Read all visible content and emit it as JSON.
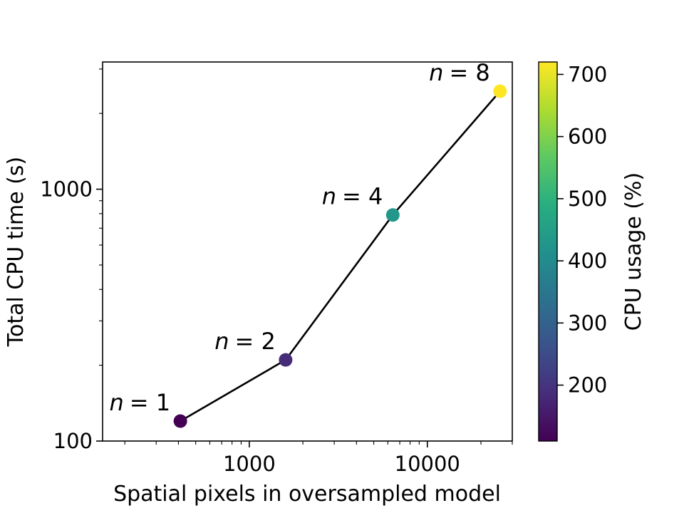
{
  "chart_data": {
    "type": "scatter",
    "xlabel": "Spatial pixels in oversampled model",
    "ylabel": "Total CPU time (s)",
    "x_scale": "log",
    "y_scale": "log",
    "xlim": [
      150,
      30000
    ],
    "ylim": [
      100,
      3200
    ],
    "x_ticks": [
      {
        "value": 1000,
        "label": "1000"
      },
      {
        "value": 10000,
        "label": "10000"
      }
    ],
    "y_ticks": [
      {
        "value": 100,
        "label": "100"
      },
      {
        "value": 1000,
        "label": "1000"
      }
    ],
    "grid": false,
    "line_color": "#000000",
    "points": [
      {
        "label": "n = 1",
        "label_var": "n",
        "label_eq": "= 1",
        "x": 410,
        "y": 120,
        "cpu_usage": 110
      },
      {
        "label": "n = 2",
        "label_var": "n",
        "label_eq": "= 2",
        "x": 1600,
        "y": 210,
        "cpu_usage": 185
      },
      {
        "label": "n = 4",
        "label_var": "n",
        "label_eq": "= 4",
        "x": 6400,
        "y": 790,
        "cpu_usage": 430
      },
      {
        "label": "n = 8",
        "label_var": "n",
        "label_eq": "= 8",
        "x": 25600,
        "y": 2450,
        "cpu_usage": 720
      }
    ],
    "colorbar": {
      "label": "CPU usage (%)",
      "colormap": "viridis",
      "range": [
        110,
        720
      ],
      "ticks": [
        {
          "value": 200,
          "label": "200"
        },
        {
          "value": 300,
          "label": "300"
        },
        {
          "value": 400,
          "label": "400"
        },
        {
          "value": 500,
          "label": "500"
        },
        {
          "value": 600,
          "label": "600"
        },
        {
          "value": 700,
          "label": "700"
        }
      ]
    }
  }
}
